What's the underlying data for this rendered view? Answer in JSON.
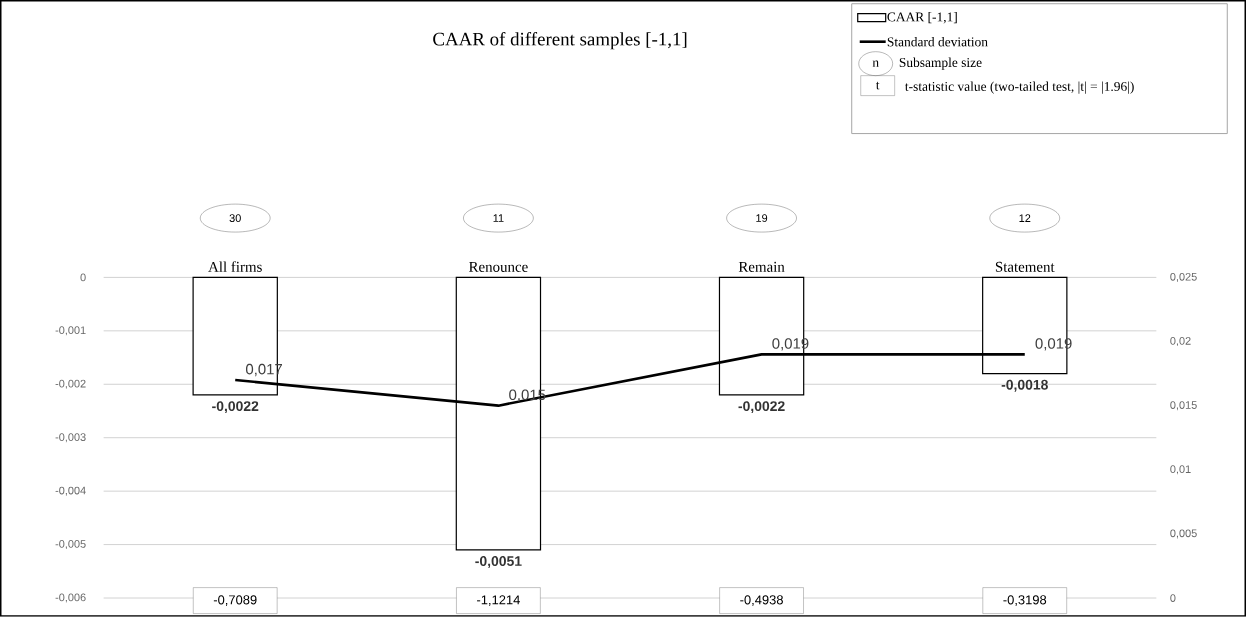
{
  "chart_data": {
    "type": "bar",
    "title": "CAAR of different samples [-1,1]",
    "categories": [
      "All firms",
      "Renounce",
      "Remain",
      "Statement"
    ],
    "series": [
      {
        "name": "CAAR [-1,1]",
        "color": "#ffffff",
        "values": [
          -0.0022,
          -0.0051,
          -0.0022,
          -0.0018
        ],
        "value_labels": [
          "-0,0022",
          "-0,0051",
          "-0,0022",
          "-0,0018"
        ]
      },
      {
        "name": "Standard deviation",
        "type": "line",
        "axis": "y2",
        "color": "#000000",
        "values": [
          0.017,
          0.015,
          0.019,
          0.019
        ],
        "value_labels": [
          "0,017",
          "0,015",
          "0,019",
          "0,019"
        ]
      }
    ],
    "ylim": [
      -0.006,
      0
    ],
    "yticks": [
      {
        "value": -0.006,
        "label": "-0,006"
      },
      {
        "value": -0.005,
        "label": "-0,005"
      },
      {
        "value": -0.004,
        "label": "-0,004"
      },
      {
        "value": -0.003,
        "label": "-0,003"
      },
      {
        "value": -0.002,
        "label": "-0,002"
      },
      {
        "value": -0.001,
        "label": "-0,001"
      },
      0
    ],
    "y2lim": [
      0,
      0.025
    ],
    "y2ticks": [
      0,
      {
        "value": 0.005,
        "label": "0,005"
      },
      {
        "value": 0.01,
        "label": "0,01"
      },
      {
        "value": 0.015,
        "label": "0,015"
      },
      {
        "value": 0.02,
        "label": "0,02"
      },
      {
        "value": 0.025,
        "label": "0,025"
      }
    ],
    "grid": "y",
    "legend": "top right",
    "annotations": [
      "n",
      "Subsample size",
      "t",
      "t-statistic value (two-tailed test, |t| = |1.96|)",
      "30",
      "11",
      "19",
      "12",
      "-0,7089",
      "-1,1214",
      "-0,4938",
      "-0,3198"
    ]
  }
}
